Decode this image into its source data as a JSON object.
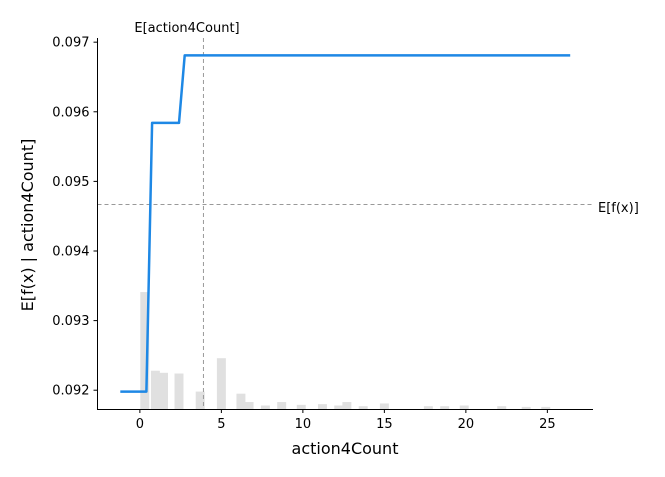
{
  "chart_data": {
    "type": "line",
    "xlabel": "action4Count",
    "ylabel": "E[f(x) | action4Count]",
    "xlim": [
      -2.6,
      27.8
    ],
    "ylim": [
      0.09173,
      0.09706
    ],
    "xticks": [
      0,
      5,
      10,
      15,
      20,
      25
    ],
    "yticks": [
      0.092,
      0.093,
      0.094,
      0.095,
      0.096,
      0.097
    ],
    "ytick_labels": [
      "0.092",
      "0.093",
      "0.094",
      "0.095",
      "0.096",
      "0.097"
    ],
    "grid": false,
    "series": [
      {
        "color": "#1e88e5",
        "x": [
          -1.2,
          0.4,
          0.75,
          2.4,
          2.75,
          26.4
        ],
        "y": [
          0.09198,
          0.09198,
          0.09584,
          0.09584,
          0.09681,
          0.09681
        ]
      }
    ],
    "histogram": {
      "color": "#e0e0e0",
      "bin_width": 0.55,
      "bins": [
        {
          "x": 0.3,
          "height": 0.00168
        },
        {
          "x": 0.95,
          "height": 0.00055
        },
        {
          "x": 1.45,
          "height": 0.00052
        },
        {
          "x": 2.4,
          "height": 0.00051
        },
        {
          "x": 3.7,
          "height": 0.00025
        },
        {
          "x": 5.0,
          "height": 0.00073
        },
        {
          "x": 6.2,
          "height": 0.00022
        },
        {
          "x": 6.7,
          "height": 0.0001
        },
        {
          "x": 7.7,
          "height": 5e-05
        },
        {
          "x": 8.7,
          "height": 0.0001
        },
        {
          "x": 9.9,
          "height": 6e-05
        },
        {
          "x": 11.2,
          "height": 7e-05
        },
        {
          "x": 12.2,
          "height": 5e-05
        },
        {
          "x": 12.7,
          "height": 0.0001
        },
        {
          "x": 13.7,
          "height": 4e-05
        },
        {
          "x": 15.0,
          "height": 8e-05
        },
        {
          "x": 17.7,
          "height": 4e-05
        },
        {
          "x": 18.7,
          "height": 4e-05
        },
        {
          "x": 19.9,
          "height": 5e-05
        },
        {
          "x": 22.2,
          "height": 4e-05
        },
        {
          "x": 23.7,
          "height": 3e-05
        },
        {
          "x": 24.9,
          "height": 3e-05
        }
      ]
    },
    "reference_lines": {
      "expected_value": {
        "label": "E[f(x)]",
        "y": 0.094668
      },
      "feature_mean": {
        "label": "E[action4Count]",
        "x": 3.9
      }
    }
  }
}
